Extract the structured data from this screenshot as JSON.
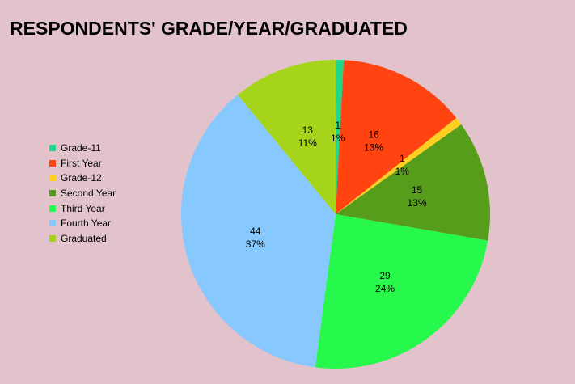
{
  "chart_data": {
    "type": "pie",
    "title": "RESPONDENTS' GRADE/YEAR/GRADUATED",
    "categories": [
      "Grade-11",
      "First Year",
      "Grade-12",
      "Second Year",
      "Third Year",
      "Fourth Year",
      "Graduated"
    ],
    "values": [
      1,
      16,
      1,
      15,
      29,
      44,
      13
    ],
    "percent_labels": [
      "1%",
      "13%",
      "1%",
      "13%",
      "24%",
      "37%",
      "11%"
    ],
    "colors": [
      "#20d88a",
      "#ff4412",
      "#ffcf22",
      "#579d1c",
      "#27f94c",
      "#87c9ff",
      "#a5d41a"
    ],
    "legend_position": "left"
  }
}
